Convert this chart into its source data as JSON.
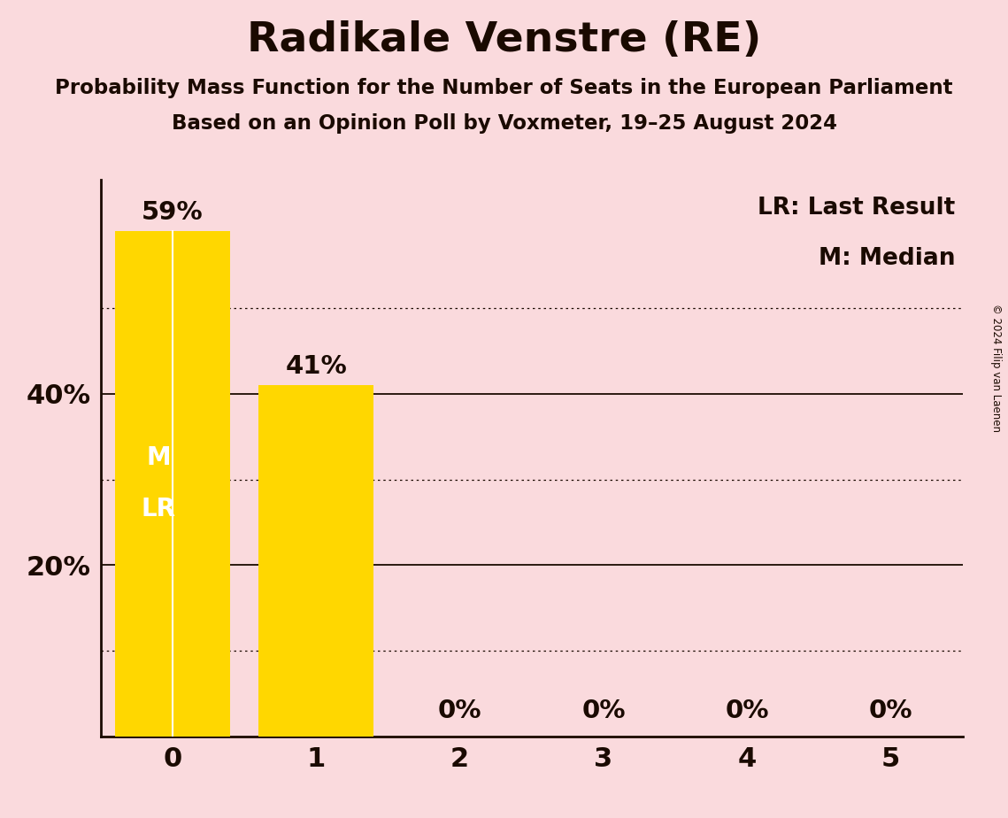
{
  "title": "Radikale Venstre (RE)",
  "subtitle1": "Probability Mass Function for the Number of Seats in the European Parliament",
  "subtitle2": "Based on an Opinion Poll by Voxmeter, 19–25 August 2024",
  "copyright": "© 2024 Filip van Laenen",
  "categories": [
    0,
    1,
    2,
    3,
    4,
    5
  ],
  "values": [
    0.59,
    0.41,
    0.0,
    0.0,
    0.0,
    0.0
  ],
  "bar_color": "#FFD700",
  "background_color": "#FADADD",
  "title_color": "#1a0a00",
  "bar_label_color_above": "#1a0a00",
  "bar_label_color_inside": "#FFFFFF",
  "ylim": [
    0,
    0.65
  ],
  "yticks": [
    0.0,
    0.2,
    0.4
  ],
  "ytick_labels": [
    "",
    "20%",
    "40%"
  ],
  "legend_lr": "LR: Last Result",
  "legend_m": "M: Median",
  "solid_gridlines": [
    0.2,
    0.4
  ],
  "dotted_gridlines": [
    0.5,
    0.3,
    0.1
  ],
  "value_labels": [
    "59%",
    "41%",
    "0%",
    "0%",
    "0%",
    "0%"
  ]
}
